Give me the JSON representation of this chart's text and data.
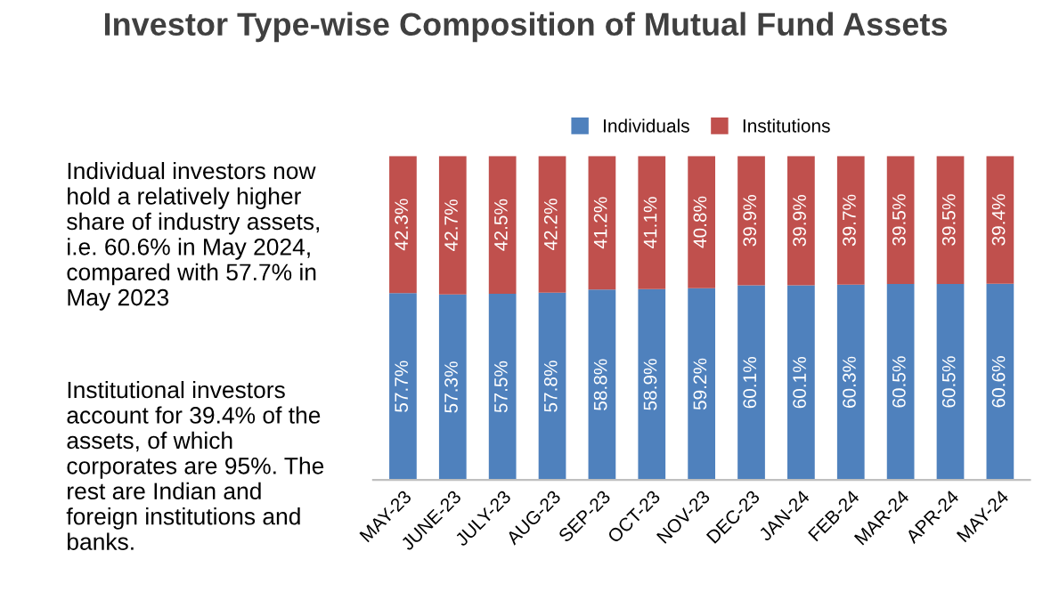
{
  "chart_data": {
    "type": "bar",
    "title": "Investor Type-wise Composition of Mutual Fund Assets",
    "stacked": true,
    "legend": "top",
    "grid": false,
    "categories": [
      "MAY-23",
      "JUNE-23",
      "JULY-23",
      "AUG-23",
      "SEP-23",
      "OCT-23",
      "NOV-23",
      "DEC-23",
      "JAN-24",
      "FEB-24",
      "MAR-24",
      "APR-24",
      "MAY-24"
    ],
    "series": [
      {
        "name": "Individuals",
        "color": "#4f81bd",
        "values": [
          57.7,
          57.3,
          57.5,
          57.8,
          58.8,
          58.9,
          59.2,
          60.1,
          60.1,
          60.3,
          60.5,
          60.5,
          60.6
        ],
        "value_labels": [
          "57.7%",
          "57.3%",
          "57.5%",
          "57.8%",
          "58.8%",
          "58.9%",
          "59.2%",
          "60.1%",
          "60.1%",
          "60.3%",
          "60.5%",
          "60.5%",
          "60.6%"
        ]
      },
      {
        "name": "Institutions",
        "color": "#c0504d",
        "values": [
          42.3,
          42.7,
          42.5,
          42.2,
          41.2,
          41.1,
          40.8,
          39.9,
          39.9,
          39.7,
          39.5,
          39.5,
          39.4
        ],
        "value_labels": [
          "42.3%",
          "42.7%",
          "42.5%",
          "42.2%",
          "41.2%",
          "41.1%",
          "40.8%",
          "39.9%",
          "39.9%",
          "39.7%",
          "39.5%",
          "39.5%",
          "39.4%"
        ]
      }
    ],
    "annotations": [
      "Individual investors now\nhold a relatively higher\nshare of industry assets,\ni.e. 60.6% in May 2024,\ncompared with 57.7% in\nMay 2023",
      "Institutional investors\naccount for 39.4% of the\nassets, of which\ncorporates are 95%. The\nrest are Indian and\nforeign institutions and\nbanks."
    ]
  }
}
